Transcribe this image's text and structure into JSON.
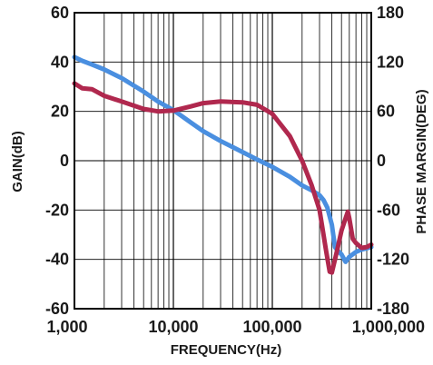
{
  "chart_data": {
    "type": "line",
    "x_scale": "log",
    "xlabel": "FREQUENCY(Hz)",
    "ylabel_left": "GAIN(dB)",
    "ylabel_right": "PHASE MARGIN(DEG)",
    "xlim": [
      1000,
      1000000
    ],
    "ylim_left": [
      -60,
      60
    ],
    "ylim_right": [
      -180,
      180
    ],
    "grid": true,
    "x_ticks": [
      {
        "value": 1000,
        "label": "1,000"
      },
      {
        "value": 10000,
        "label": "10,000"
      },
      {
        "value": 100000,
        "label": "100,000"
      },
      {
        "value": 1000000,
        "label": "1,000,000"
      }
    ],
    "y_ticks_left": [
      {
        "value": 60,
        "label": "60"
      },
      {
        "value": 40,
        "label": "40"
      },
      {
        "value": 20,
        "label": "20"
      },
      {
        "value": 0,
        "label": "0"
      },
      {
        "value": -20,
        "label": "-20"
      },
      {
        "value": -40,
        "label": "-40"
      },
      {
        "value": -60,
        "label": "-60"
      }
    ],
    "y_ticks_right": [
      {
        "value": 180,
        "label": "180"
      },
      {
        "value": 120,
        "label": "120"
      },
      {
        "value": 60,
        "label": "60"
      },
      {
        "value": 0,
        "label": "0"
      },
      {
        "value": -60,
        "label": "-60"
      },
      {
        "value": -120,
        "label": "-120"
      },
      {
        "value": -180,
        "label": "-180"
      }
    ],
    "series": [
      {
        "color": "#4a8fe0",
        "axis": "left",
        "x": [
          1000,
          1200,
          1500,
          2000,
          3000,
          5000,
          7000,
          10000,
          15000,
          20000,
          30000,
          50000,
          70000,
          100000,
          150000,
          200000,
          250000,
          300000,
          330000,
          360000,
          400000,
          430000,
          460000,
          500000,
          550000,
          600000,
          700000,
          800000,
          900000,
          1000000
        ],
        "values": [
          42,
          40.5,
          39,
          37,
          33.5,
          28,
          24,
          20.5,
          15.5,
          12,
          8,
          3.5,
          0.5,
          -2.5,
          -6.5,
          -10,
          -12,
          -14,
          -16,
          -19,
          -26,
          -35,
          -36.5,
          -38,
          -41,
          -39,
          -37,
          -36,
          -35.5,
          -35
        ]
      },
      {
        "color": "#b0284e",
        "axis": "right",
        "x": [
          1000,
          1200,
          1500,
          2000,
          3000,
          5000,
          7000,
          10000,
          15000,
          20000,
          30000,
          50000,
          70000,
          100000,
          150000,
          200000,
          250000,
          300000,
          350000,
          380000,
          400000,
          450000,
          500000,
          550000,
          580000,
          600000,
          650000,
          700000,
          800000,
          900000,
          1000000
        ],
        "values": [
          94,
          88,
          87,
          79,
          72,
          63,
          60,
          61,
          66,
          70,
          72,
          71,
          68,
          57,
          30,
          0,
          -30,
          -60,
          -110,
          -135,
          -136,
          -110,
          -85,
          -70,
          -62,
          -70,
          -95,
          -100,
          -106,
          -105,
          -102
        ]
      }
    ]
  }
}
